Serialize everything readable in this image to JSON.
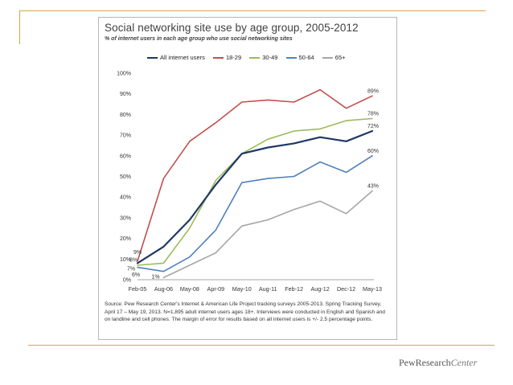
{
  "brand": {
    "name_main": "PewResearch",
    "name_sub": "Center"
  },
  "chart_data": {
    "type": "line",
    "title": "Social networking site use by age group, 2005-2012",
    "subtitle": "% of internet users in each age group who use social networking sites",
    "xlabel": "",
    "ylabel": "",
    "categories": [
      "Feb-05",
      "Aug-06",
      "May-08",
      "Apr-09",
      "May-10",
      "Aug-11",
      "Feb-12",
      "Aug-12",
      "Dec-12",
      "May-13"
    ],
    "y_ticks": [
      "0%",
      "10%",
      "20%",
      "30%",
      "40%",
      "50%",
      "60%",
      "70%",
      "80%",
      "90%",
      "100%"
    ],
    "ylim": [
      0,
      100
    ],
    "series": [
      {
        "name": "All internet users",
        "color": "#1f3864",
        "width": 2.2,
        "values": [
          8,
          16,
          29,
          46,
          61,
          64,
          66,
          69,
          67,
          72
        ],
        "start_label": "8%",
        "end_label": "72%"
      },
      {
        "name": "18-29",
        "color": "#c0504d",
        "width": 1.6,
        "values": [
          9,
          49,
          67,
          76,
          86,
          87,
          86,
          92,
          83,
          89
        ],
        "start_label": "9%",
        "end_label": "89%"
      },
      {
        "name": "30-49",
        "color": "#9bbb59",
        "width": 1.6,
        "values": [
          7,
          8,
          25,
          48,
          61,
          68,
          72,
          73,
          77,
          78
        ],
        "start_label": "7%",
        "end_label": "78%"
      },
      {
        "name": "50-64",
        "color": "#4f81bd",
        "width": 1.6,
        "values": [
          6,
          4,
          11,
          24,
          47,
          49,
          50,
          57,
          52,
          60
        ],
        "start_label": "6%",
        "end_label": "60%"
      },
      {
        "name": "65+",
        "color": "#a6a6a6",
        "width": 1.6,
        "values": [
          null,
          1,
          7,
          13,
          26,
          29,
          34,
          38,
          32,
          43
        ],
        "start_label": "1%",
        "end_label": "43%"
      }
    ]
  },
  "source_note": "Source: Pew Research Center's Internet & American Life Project tracking surveys 2005-2013. Spring Tracking Survey, April 17 – May 19, 2013. N=1,895 adult internet users ages 18+. Interviews were conducted in English and Spanish and on landline and cell phones.  The margin of error for results based on all internet users is +/- 2.5 percentage points."
}
